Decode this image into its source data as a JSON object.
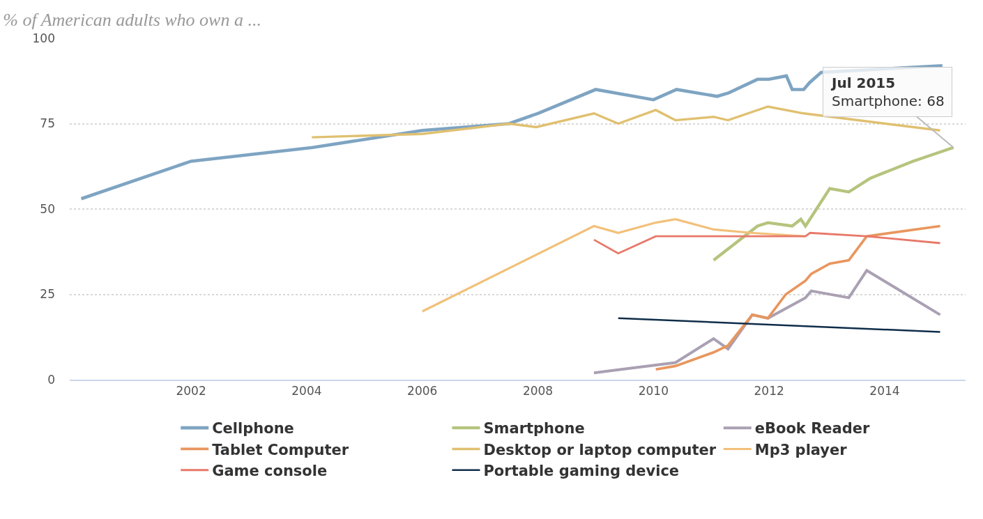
{
  "chart_data": {
    "type": "line",
    "title": "% of American adults who own a ...",
    "xlim": [
      1999.9,
      2015.4
    ],
    "xticks": [
      2002,
      2004,
      2006,
      2008,
      2010,
      2012,
      2014
    ],
    "ylim": [
      0,
      100
    ],
    "yticks": [
      0,
      25,
      50,
      75,
      100
    ],
    "grid": "y",
    "legend": "bottom",
    "marker": "none",
    "line_style": "solid",
    "annotations": [
      {
        "text": "Jul 2015\nSmartphone: 68",
        "x": 2015.19,
        "y": 68
      }
    ],
    "series": [
      {
        "name": "Cellphone",
        "color": "#7ea4c2",
        "x": [
          2000.1,
          2002,
          2004.1,
          2006,
          2007.5,
          2008,
          2009,
          2010,
          2010.4,
          2011.1,
          2011.3,
          2011.8,
          2012,
          2012.3,
          2012.4,
          2012.6,
          2012.7,
          2012.9,
          2015
        ],
        "values": [
          53,
          64,
          68,
          73,
          75,
          78,
          85,
          82,
          85,
          83,
          84,
          88,
          88,
          89,
          85,
          85,
          87,
          90,
          92
        ]
      },
      {
        "name": "Smartphone",
        "color": "#b5c47d",
        "x": [
          2011.04,
          2011.8,
          2011.98,
          2012.4,
          2012.55,
          2012.63,
          2013.05,
          2013.38,
          2013.75,
          2014.49,
          2015.19
        ],
        "values": [
          35,
          45,
          46,
          45,
          47,
          45,
          56,
          55,
          59,
          64,
          68
        ]
      },
      {
        "name": "eBook Reader",
        "color": "#aaa0b3",
        "x": [
          2008.97,
          2009.44,
          2010.38,
          2011.04,
          2011.29,
          2011.71,
          2011.98,
          2012.63,
          2012.73,
          2013.38,
          2013.69,
          2014.96
        ],
        "values": [
          2,
          3,
          5,
          12,
          9,
          19,
          18,
          24,
          26,
          24,
          32,
          19
        ]
      },
      {
        "name": "Tablet Computer",
        "color": "#e8965e",
        "x": [
          2010.04,
          2010.38,
          2011.04,
          2011.29,
          2011.71,
          2011.98,
          2012.29,
          2012.63,
          2012.73,
          2013.05,
          2013.38,
          2013.69,
          2014.96
        ],
        "values": [
          3,
          4,
          8,
          10,
          19,
          18,
          25,
          29,
          31,
          34,
          35,
          42,
          45
        ]
      },
      {
        "name": "Desktop or laptop computer",
        "color": "#e0c070",
        "x": [
          2004.09,
          2006,
          2007.5,
          2007.97,
          2008.97,
          2009.39,
          2010.04,
          2010.38,
          2011.04,
          2011.29,
          2011.98,
          2012.6,
          2014.96
        ],
        "values": [
          71,
          72,
          75,
          74,
          78,
          75,
          79,
          76,
          77,
          76,
          80,
          78,
          73
        ]
      },
      {
        "name": "Mp3 player",
        "color": "#f2c07a",
        "x": [
          2006,
          2008.97,
          2009.39,
          2010.04,
          2010.38,
          2011.04,
          2011.69,
          2012.63
        ],
        "values": [
          20,
          45,
          43,
          46,
          47,
          44,
          43,
          42
        ]
      },
      {
        "name": "Game console",
        "color": "#e8786a",
        "x": [
          2008.97,
          2009.39,
          2010.04,
          2012.63,
          2012.71,
          2013.69,
          2014.96
        ],
        "values": [
          41,
          37,
          42,
          42,
          43,
          42,
          40
        ]
      },
      {
        "name": "Portable gaming device",
        "color": "#0f2d4a",
        "x": [
          2009.39,
          2014.96
        ],
        "values": [
          18,
          14
        ]
      }
    ]
  }
}
